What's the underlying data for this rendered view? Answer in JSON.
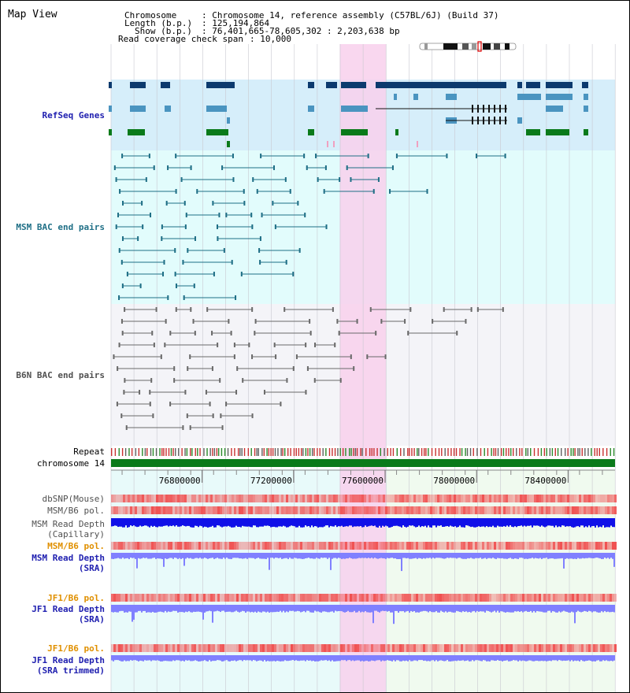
{
  "window": {
    "title": "Map View"
  },
  "info": {
    "chromosome_label": "Chromosome",
    "chromosome_value": ": Chromosome 14, reference assembly (C57BL/6J) (Build 37)",
    "length_label": "Length (b.p.)",
    "length_value": ": 125,194,864",
    "show_label": "Show (b.p.)",
    "show_value": ": 76,401,665-78,605,302 : 2,203,638 bp",
    "coverage_label": "Read coverage check span",
    "coverage_value": ": 10,000"
  },
  "tracks": {
    "refseq": "RefSeq Genes",
    "msm_bac": "MSM BAC end pairs",
    "b6n_bac": "B6N BAC end pairs",
    "repeat": "Repeat",
    "chromosome": "chromosome 14",
    "dbsnp": "dbSNP(Mouse)",
    "msm_b6_pol": "MSM/B6 pol.",
    "msm_depth_cap_1": "MSM Read Depth",
    "msm_depth_cap_2": "(Capillary)",
    "msm_b6_pol_2": "MSM/B6 pol.",
    "msm_depth_sra_1": "MSM Read Depth",
    "msm_depth_sra_2": "(SRA)",
    "jf1_b6_pol": "JF1/B6 pol.",
    "jf1_depth_sra_1": "JF1 Read Depth",
    "jf1_depth_sra_2": "(SRA)",
    "jf1_b6_pol_2": "JF1/B6 pol.",
    "jf1_depth_trim_1": "JF1 Read Depth",
    "jf1_depth_trim_2": "(SRA trimmed)"
  },
  "axis": {
    "ticks": [
      {
        "value": 76800000,
        "label": "76800000"
      },
      {
        "value": 77200000,
        "label": "77200000"
      },
      {
        "value": 77600000,
        "label": "77600000"
      },
      {
        "value": 78000000,
        "label": "78000000"
      },
      {
        "value": 78400000,
        "label": "78400000"
      }
    ],
    "range": [
      76401665,
      78605302
    ],
    "highlight": [
      77401665,
      77605302
    ]
  },
  "colors": {
    "refseq_bg": "#d6eefa",
    "msm_bg": "#e2fcfc",
    "b6n_bg": "#f4f4f8",
    "highlight": "#f8d0ec",
    "refseq_dark": "#0c3a6e",
    "refseq_mid": "#4a94c0",
    "refseq_green": "#0a7a1a",
    "msm_bac": "#1f6f86",
    "b6n_bac": "#6a6a6a",
    "chromosome": "#0a7a1a",
    "snp": "#f05050",
    "depth_capillary": "#1010e8",
    "depth_sra": "#8080ff",
    "label_blue": "#2020b0",
    "label_teal": "#1f6f86",
    "label_gray": "#505050",
    "label_orange": "#e09000"
  }
}
